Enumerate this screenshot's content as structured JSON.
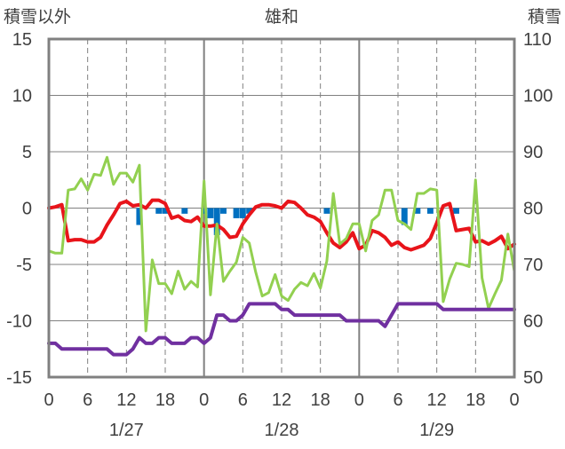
{
  "chart_data": {
    "type": "line",
    "title": "雄和",
    "y_left_label": "積雪以外",
    "y_right_label": "積雪",
    "y_left_ticks": [
      15,
      10,
      5,
      0,
      -5,
      -10,
      -15
    ],
    "y_left_range": [
      -15,
      15
    ],
    "y_right_ticks": [
      110,
      100,
      90,
      80,
      70,
      60,
      50
    ],
    "y_right_range": [
      50,
      110
    ],
    "x_tick_labels": [
      "0",
      "6",
      "12",
      "18",
      "0",
      "6",
      "12",
      "18",
      "0",
      "6",
      "12",
      "18",
      "0"
    ],
    "x_range_hours": [
      0,
      72
    ],
    "date_labels": [
      {
        "label": "1/27",
        "center_hour": 12
      },
      {
        "label": "1/28",
        "center_hour": 36
      },
      {
        "label": "1/29",
        "center_hour": 60
      }
    ],
    "grid": "dashed vertical lines every 6 hours, solid at day boundaries and y=0",
    "colors": {
      "temperature": "#e8141a",
      "wind": "#92d050",
      "snow_depth": "#7030a0",
      "precip_bars": "#0070c0",
      "frame": "#808080",
      "grid": "#808080"
    },
    "series": [
      {
        "axis": "left",
        "key": "temperature",
        "x": [
          0,
          1,
          2,
          3,
          4,
          5,
          6,
          7,
          8,
          9,
          10,
          11,
          12,
          13,
          14,
          15,
          16,
          17,
          18,
          19,
          20,
          21,
          22,
          23,
          24,
          25,
          26,
          27,
          28,
          29,
          30,
          31,
          32,
          33,
          34,
          35,
          36,
          37,
          38,
          39,
          40,
          41,
          42,
          43,
          44,
          45,
          46,
          47,
          48,
          49,
          50,
          51,
          52,
          53,
          54,
          55,
          56,
          57,
          58,
          59,
          60,
          61,
          62,
          63,
          64,
          65,
          66,
          67,
          68,
          69,
          70,
          71,
          72
        ],
        "values": [
          0,
          0.1,
          0.3,
          -2.9,
          -2.8,
          -2.8,
          -3.0,
          -3.0,
          -2.6,
          -1.5,
          -0.6,
          0.4,
          0.6,
          0.2,
          0.3,
          0.0,
          0.7,
          0.7,
          0.4,
          -0.9,
          -0.7,
          -1.1,
          -1.2,
          -0.8,
          -1.6,
          -1.6,
          -1.5,
          -1.9,
          -2.6,
          -2.5,
          -1.4,
          -0.6,
          0.1,
          0.3,
          0.3,
          0.2,
          0.0,
          0.6,
          0.5,
          0.0,
          -0.6,
          -0.8,
          -1.2,
          -2.2,
          -3.1,
          -3.5,
          -3.0,
          -2.2,
          -3.6,
          -3.3,
          -2.0,
          -2.2,
          -2.6,
          -3.3,
          -3.0,
          -3.5,
          -3.7,
          -3.5,
          -3.3,
          -2.7,
          -1.3,
          0.2,
          0.4,
          -2.0,
          -1.9,
          -1.8,
          -3.0,
          -2.9,
          -3.2,
          -2.9,
          -2.5,
          -3.6,
          -3.2
        ]
      },
      {
        "axis": "left",
        "key": "wind",
        "x": [
          0,
          1,
          2,
          3,
          4,
          5,
          6,
          7,
          8,
          9,
          10,
          11,
          12,
          13,
          14,
          15,
          16,
          17,
          18,
          19,
          20,
          21,
          22,
          23,
          24,
          25,
          26,
          27,
          28,
          29,
          30,
          31,
          32,
          33,
          34,
          35,
          36,
          37,
          38,
          39,
          40,
          41,
          42,
          43,
          44,
          45,
          46,
          47,
          48,
          49,
          50,
          51,
          52,
          53,
          54,
          55,
          56,
          57,
          58,
          59,
          60,
          61,
          62,
          63,
          64,
          65,
          66,
          67,
          68,
          69,
          70,
          71,
          72
        ],
        "values": [
          -3.8,
          -4.0,
          -4.0,
          1.6,
          1.7,
          2.6,
          1.6,
          3.0,
          2.9,
          4.5,
          2.1,
          3.1,
          3.1,
          2.3,
          3.8,
          -10.9,
          -4.6,
          -6.7,
          -6.7,
          -7.6,
          -5.6,
          -7.2,
          -6.5,
          -7.0,
          2.4,
          -7.7,
          -1.4,
          -6.5,
          -5.6,
          -4.8,
          -2.6,
          -3.1,
          -5.7,
          -7.8,
          -7.5,
          -5.9,
          -7.8,
          -8.2,
          -7.2,
          -6.6,
          -6.9,
          -5.8,
          -7.1,
          -4.7,
          1.3,
          -3.2,
          -2.7,
          -1.4,
          -1.4,
          -3.8,
          -1.1,
          -0.6,
          1.6,
          1.6,
          -1.1,
          -1.4,
          -1.9,
          1.3,
          1.3,
          1.7,
          1.6,
          -8.3,
          -6.3,
          -4.9,
          -5.0,
          -5.2,
          2.5,
          -6.2,
          -8.9,
          -7.6,
          -6.4,
          -2.3,
          -5.6
        ]
      },
      {
        "axis": "right",
        "key": "snow_depth",
        "x": [
          0,
          1,
          2,
          3,
          4,
          5,
          6,
          7,
          8,
          9,
          10,
          11,
          12,
          13,
          14,
          15,
          16,
          17,
          18,
          19,
          20,
          21,
          22,
          23,
          24,
          25,
          26,
          27,
          28,
          29,
          30,
          31,
          32,
          33,
          34,
          35,
          36,
          37,
          38,
          39,
          40,
          41,
          42,
          43,
          44,
          45,
          46,
          47,
          48,
          49,
          50,
          51,
          52,
          53,
          54,
          55,
          56,
          57,
          58,
          59,
          60,
          61,
          62,
          63,
          64,
          65,
          66,
          67,
          68,
          69,
          70,
          71,
          72
        ],
        "values": [
          56,
          56,
          55,
          55,
          55,
          55,
          55,
          55,
          55,
          55,
          54,
          54,
          54,
          55,
          57,
          56,
          56,
          57,
          57,
          56,
          56,
          56,
          57,
          57,
          56,
          57,
          61,
          61,
          60,
          60,
          61,
          63,
          63,
          63,
          63,
          63,
          62,
          62,
          61,
          61,
          61,
          61,
          61,
          61,
          61,
          61,
          60,
          60,
          60,
          60,
          60,
          60,
          59,
          61,
          63,
          63,
          63,
          63,
          63,
          63,
          63,
          62,
          62,
          62,
          62,
          62,
          62,
          62,
          62,
          62,
          62,
          62,
          62
        ]
      },
      {
        "axis": "left",
        "key": "precip",
        "kind": "bar",
        "x": [
          14,
          17,
          18,
          21,
          24,
          25,
          26,
          27,
          29,
          30,
          31,
          43,
          55,
          57,
          59,
          63
        ],
        "values": [
          -1.5,
          -0.5,
          -0.5,
          -0.5,
          -0.5,
          -0.9,
          -2.4,
          -0.5,
          -0.9,
          -0.9,
          -0.5,
          -0.5,
          -1.5,
          -0.5,
          -0.5,
          -0.5
        ]
      }
    ]
  }
}
